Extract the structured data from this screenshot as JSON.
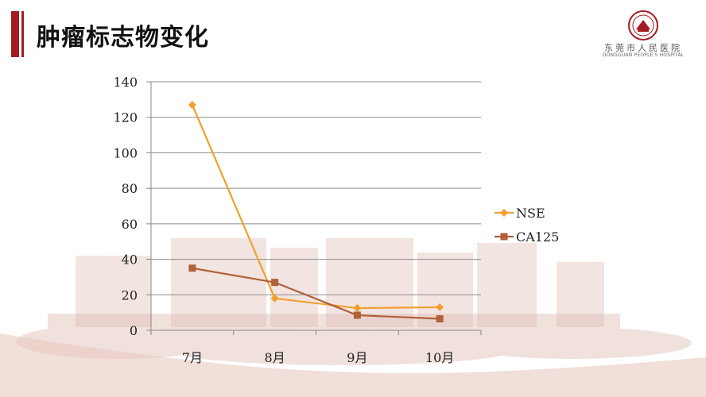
{
  "slide": {
    "title": "肿瘤标志物变化"
  },
  "logo": {
    "name_cn": "东莞市人民医院",
    "name_en": "DONGGUAN PEOPLE'S HOSPITAL"
  },
  "chart_data": {
    "type": "line",
    "categories": [
      "7月",
      "8月",
      "9月",
      "10月"
    ],
    "ylim": [
      0,
      140
    ],
    "yticks": [
      0,
      20,
      40,
      60,
      80,
      100,
      120,
      140
    ],
    "grid": true,
    "legend": "right",
    "series": [
      {
        "name": "NSE",
        "values": [
          127,
          18,
          12.5,
          13
        ],
        "color": "#f0a030",
        "marker": "diamond"
      },
      {
        "name": "CA125",
        "values": [
          35,
          27,
          8.5,
          6.5
        ],
        "color": "#b0603a",
        "marker": "square"
      }
    ]
  }
}
